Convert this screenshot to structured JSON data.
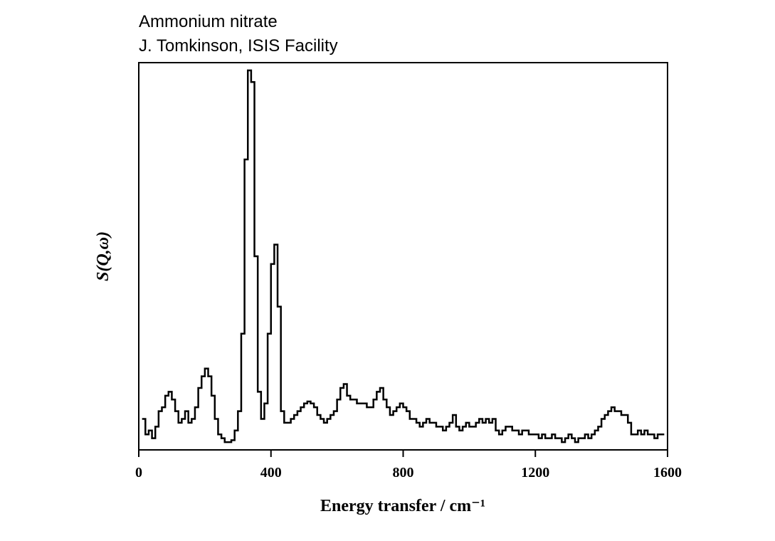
{
  "chart_data": {
    "type": "step",
    "title": "Ammonium nitrate",
    "subtitle": "J. Tomkinson, ISIS Facility",
    "xlabel": "Energy transfer / cm⁻¹",
    "ylabel": "S(Q,ω)",
    "xlim": [
      0,
      1600
    ],
    "xticks": [
      0,
      400,
      800,
      1200,
      1600
    ],
    "ylim": [
      0,
      100
    ],
    "color": "#000000",
    "x": [
      10,
      20,
      30,
      40,
      50,
      60,
      70,
      80,
      90,
      100,
      110,
      120,
      130,
      140,
      150,
      160,
      170,
      180,
      190,
      200,
      210,
      220,
      230,
      240,
      250,
      260,
      270,
      280,
      290,
      300,
      310,
      320,
      330,
      340,
      350,
      360,
      370,
      380,
      390,
      400,
      410,
      420,
      430,
      440,
      450,
      460,
      470,
      480,
      490,
      500,
      510,
      520,
      530,
      540,
      550,
      560,
      570,
      580,
      590,
      600,
      610,
      620,
      630,
      640,
      650,
      660,
      670,
      680,
      690,
      700,
      710,
      720,
      730,
      740,
      750,
      760,
      770,
      780,
      790,
      800,
      810,
      820,
      830,
      840,
      850,
      860,
      870,
      880,
      890,
      900,
      910,
      920,
      930,
      940,
      950,
      960,
      970,
      980,
      990,
      1000,
      1010,
      1020,
      1030,
      1040,
      1050,
      1060,
      1070,
      1080,
      1090,
      1100,
      1110,
      1120,
      1130,
      1140,
      1150,
      1160,
      1170,
      1180,
      1190,
      1200,
      1210,
      1220,
      1230,
      1240,
      1250,
      1260,
      1270,
      1280,
      1290,
      1300,
      1310,
      1320,
      1330,
      1340,
      1350,
      1360,
      1370,
      1380,
      1390,
      1400,
      1410,
      1420,
      1430,
      1440,
      1450,
      1460,
      1470,
      1480,
      1490,
      1500,
      1510,
      1520,
      1530,
      1540,
      1550,
      1560,
      1570,
      1580,
      1590
    ],
    "values": [
      8,
      4,
      5,
      3,
      6,
      10,
      11,
      14,
      15,
      13,
      10,
      7,
      8,
      10,
      7,
      8,
      11,
      16,
      19,
      21,
      19,
      14,
      8,
      4,
      3,
      2,
      2,
      2.5,
      5,
      10,
      30,
      75,
      98,
      95,
      50,
      15,
      8,
      12,
      30,
      48,
      53,
      37,
      10,
      7,
      7,
      8,
      9,
      10,
      11,
      12,
      12.5,
      12,
      11,
      9,
      8,
      7,
      8,
      9,
      10,
      13,
      16,
      17,
      14,
      13,
      13,
      12,
      12,
      12,
      11,
      11,
      13,
      15,
      16,
      13,
      11,
      9,
      10,
      11,
      12,
      11,
      10,
      8,
      8,
      7,
      6,
      7,
      8,
      7,
      7,
      6,
      6,
      5,
      6,
      7,
      9,
      6,
      5,
      6,
      7,
      6,
      6,
      7,
      8,
      7,
      8,
      7,
      8,
      5,
      4,
      5,
      6,
      6,
      5,
      5,
      4,
      5,
      5,
      4,
      4,
      4,
      3,
      4,
      3,
      3,
      4,
      3,
      3,
      2,
      3,
      4,
      3,
      2,
      3,
      3,
      4,
      3,
      4,
      5,
      6,
      8,
      9,
      10,
      11,
      10,
      10,
      9,
      9,
      7,
      4,
      4,
      5,
      4,
      5,
      4,
      4,
      3,
      4,
      4,
      4
    ]
  }
}
